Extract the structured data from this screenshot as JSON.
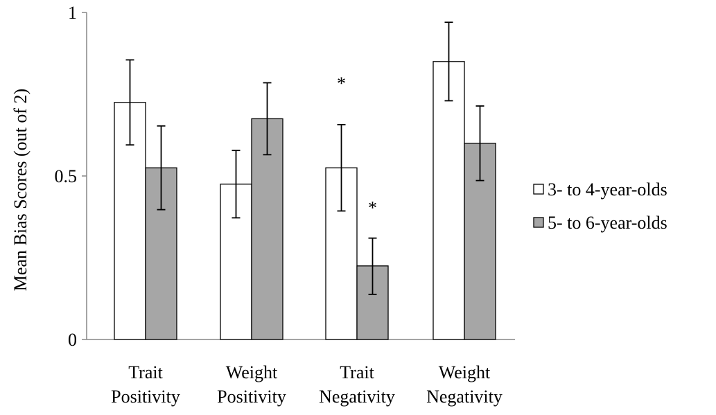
{
  "chart_data": {
    "type": "bar",
    "title": "",
    "xlabel": "",
    "ylabel": "Mean Bias Scores (out of 2)",
    "ylim": [
      0,
      1
    ],
    "yticks": [
      "0",
      "0.5",
      "1"
    ],
    "grid": false,
    "legend_position": "right",
    "categories": [
      [
        "Trait",
        "Positivity"
      ],
      [
        "Weight",
        "Positivity"
      ],
      [
        "Trait",
        "Negativity"
      ],
      [
        "Weight",
        "Negativity"
      ]
    ],
    "series": [
      {
        "name": "3- to 4-year-olds",
        "color": "#ffffff",
        "values": [
          0.725,
          0.475,
          0.525,
          0.85
        ],
        "err_low": [
          0.595,
          0.372,
          0.393,
          0.73
        ],
        "err_high": [
          0.855,
          0.578,
          0.657,
          0.97
        ]
      },
      {
        "name": "5- to 6-year-olds",
        "color": "#a6a6a6",
        "values": [
          0.525,
          0.675,
          0.225,
          0.6
        ],
        "err_low": [
          0.397,
          0.565,
          0.138,
          0.486
        ],
        "err_high": [
          0.653,
          0.785,
          0.31,
          0.714
        ]
      }
    ],
    "annotations": [
      {
        "text": "*",
        "category_index": 2,
        "series_index": 0,
        "y": 0.79
      },
      {
        "text": "*",
        "category_index": 2,
        "series_index": 1,
        "y": 0.41
      }
    ]
  }
}
